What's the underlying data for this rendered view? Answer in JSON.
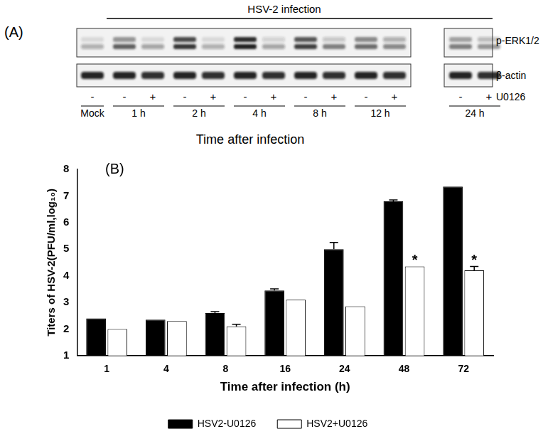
{
  "panel_a": {
    "label": "(A)",
    "header": "HSV-2 infection",
    "rows": [
      "p-ERK1/2",
      "β-actin"
    ],
    "treatment": "U0126",
    "xlabel": "Time after infection",
    "groups": [
      {
        "time": "Mock",
        "lanes": [
          {
            "u0126": "-",
            "p_erk": [
              0.1,
              0.3
            ],
            "beta_actin": 0.9
          }
        ]
      },
      {
        "time": "1 h",
        "lanes": [
          {
            "u0126": "-",
            "p_erk": [
              0.45,
              0.7
            ],
            "beta_actin": 0.9
          },
          {
            "u0126": "+",
            "p_erk": [
              0.1,
              0.35
            ],
            "beta_actin": 0.85
          }
        ]
      },
      {
        "time": "2 h",
        "lanes": [
          {
            "u0126": "-",
            "p_erk": [
              0.8,
              0.9
            ],
            "beta_actin": 0.9
          },
          {
            "u0126": "+",
            "p_erk": [
              0.1,
              0.3
            ],
            "beta_actin": 0.85
          }
        ]
      },
      {
        "time": "4 h",
        "lanes": [
          {
            "u0126": "-",
            "p_erk": [
              0.95,
              1.0
            ],
            "beta_actin": 0.9
          },
          {
            "u0126": "+",
            "p_erk": [
              0.15,
              0.35
            ],
            "beta_actin": 0.85
          }
        ]
      },
      {
        "time": "8 h",
        "lanes": [
          {
            "u0126": "-",
            "p_erk": [
              0.75,
              0.85
            ],
            "beta_actin": 0.9
          },
          {
            "u0126": "+",
            "p_erk": [
              0.2,
              0.55
            ],
            "beta_actin": 0.85
          }
        ]
      },
      {
        "time": "12 h",
        "lanes": [
          {
            "u0126": "-",
            "p_erk": [
              0.5,
              0.65
            ],
            "beta_actin": 0.9
          },
          {
            "u0126": "+",
            "p_erk": [
              0.3,
              0.5
            ],
            "beta_actin": 0.85
          }
        ]
      },
      {
        "time": "24 h",
        "lanes": [
          {
            "u0126": "-",
            "p_erk": [
              0.4,
              0.55
            ],
            "beta_actin": 0.9
          },
          {
            "u0126": "+",
            "p_erk": [
              0.25,
              0.45
            ],
            "beta_actin": 0.85
          }
        ]
      }
    ]
  },
  "chart_data": {
    "type": "bar",
    "title": "(B)",
    "x_label": "Time after infection (h)",
    "y_label": "Titers of HSV-2(PFU/ml,log₁₀)",
    "categories": [
      "1",
      "4",
      "8",
      "16",
      "24",
      "48",
      "72"
    ],
    "series": [
      {
        "name": "HSV2-U0126",
        "color": "#000000",
        "values": [
          2.4,
          2.35,
          2.6,
          3.45,
          5.0,
          6.8,
          7.35
        ],
        "errors": [
          0,
          0,
          0.05,
          0.06,
          0.25,
          0.05,
          0
        ]
      },
      {
        "name": "HSV2+U0126",
        "color": "#ffffff",
        "values": [
          2.0,
          2.3,
          2.1,
          3.1,
          2.85,
          4.35,
          4.2
        ],
        "errors": [
          0,
          0,
          0.08,
          0,
          0,
          0,
          0.15
        ]
      }
    ],
    "annotations": [
      {
        "text": "*",
        "category": "48",
        "series": "HSV2+U0126"
      },
      {
        "text": "*",
        "category": "72",
        "series": "HSV2+U0126"
      }
    ],
    "ylim": [
      1,
      8
    ],
    "yticks": [
      1,
      2,
      3,
      4,
      5,
      6,
      7,
      8
    ],
    "grid": false,
    "legend": "bottom"
  }
}
